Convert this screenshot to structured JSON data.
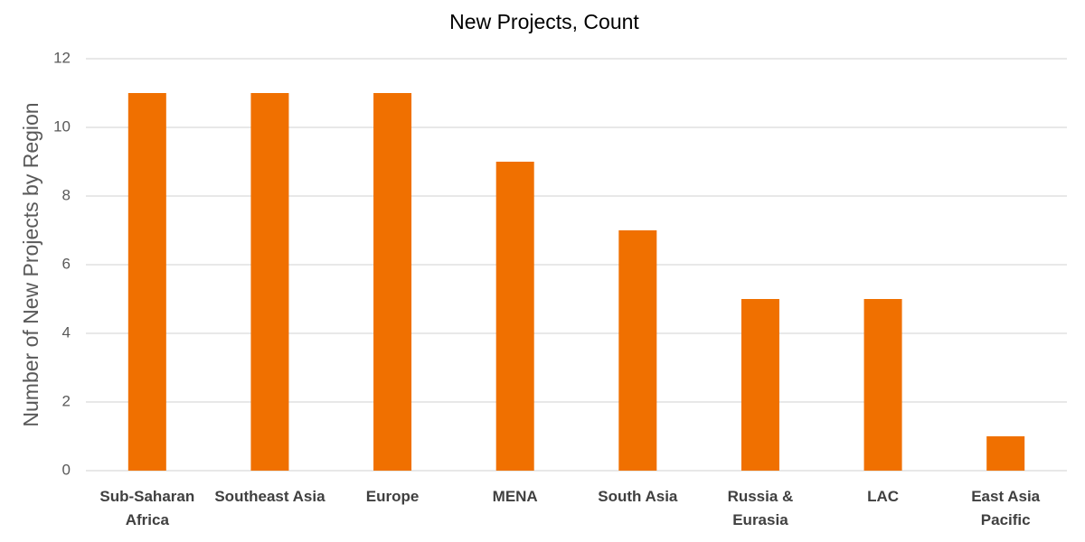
{
  "chart_data": {
    "type": "bar",
    "title": "New Projects, Count",
    "y_label": "Number of New Projects by Region",
    "categories": [
      "Sub-Saharan\nAfrica",
      "Southeast Asia",
      "Europe",
      "MENA",
      "South Asia",
      "Russia &\nEurasia",
      "LAC",
      "East Asia\nPacific"
    ],
    "values": [
      11,
      11,
      11,
      9,
      7,
      5,
      5,
      1
    ],
    "color": "#f07000",
    "ylim": [
      0,
      12
    ],
    "yticks": [
      0,
      2,
      4,
      6,
      8,
      10,
      12
    ],
    "grid": true
  }
}
